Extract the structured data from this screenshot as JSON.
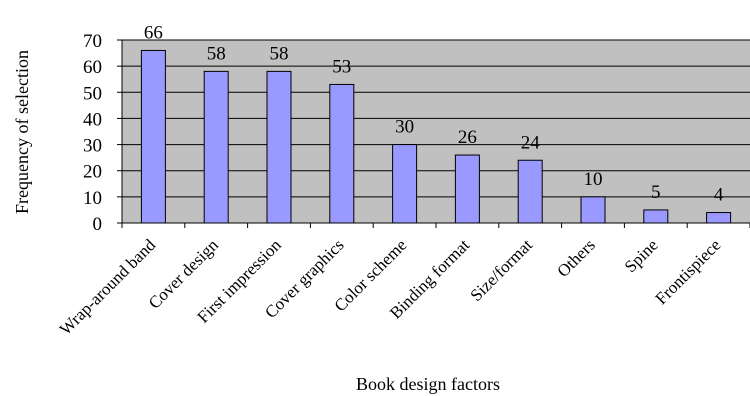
{
  "chart_data": {
    "type": "bar",
    "title": "",
    "xlabel": "Book design factors",
    "ylabel": "Frequency of selection",
    "categories": [
      "Wrap-around band",
      "Cover design",
      "First impression",
      "Cover graphics",
      "Color scheme",
      "Binding format",
      "Size/format",
      "Others",
      "Spine",
      "Frontispiece"
    ],
    "values": [
      66,
      58,
      58,
      53,
      30,
      26,
      24,
      10,
      5,
      4
    ],
    "ylim": [
      0,
      70
    ],
    "yticks": [
      0,
      10,
      20,
      30,
      40,
      50,
      60,
      70
    ],
    "grid": true,
    "legend": "none",
    "colors": {
      "bar": "#9999ff",
      "plot_background": "#c0c0c0",
      "gridline": "#000000"
    }
  }
}
